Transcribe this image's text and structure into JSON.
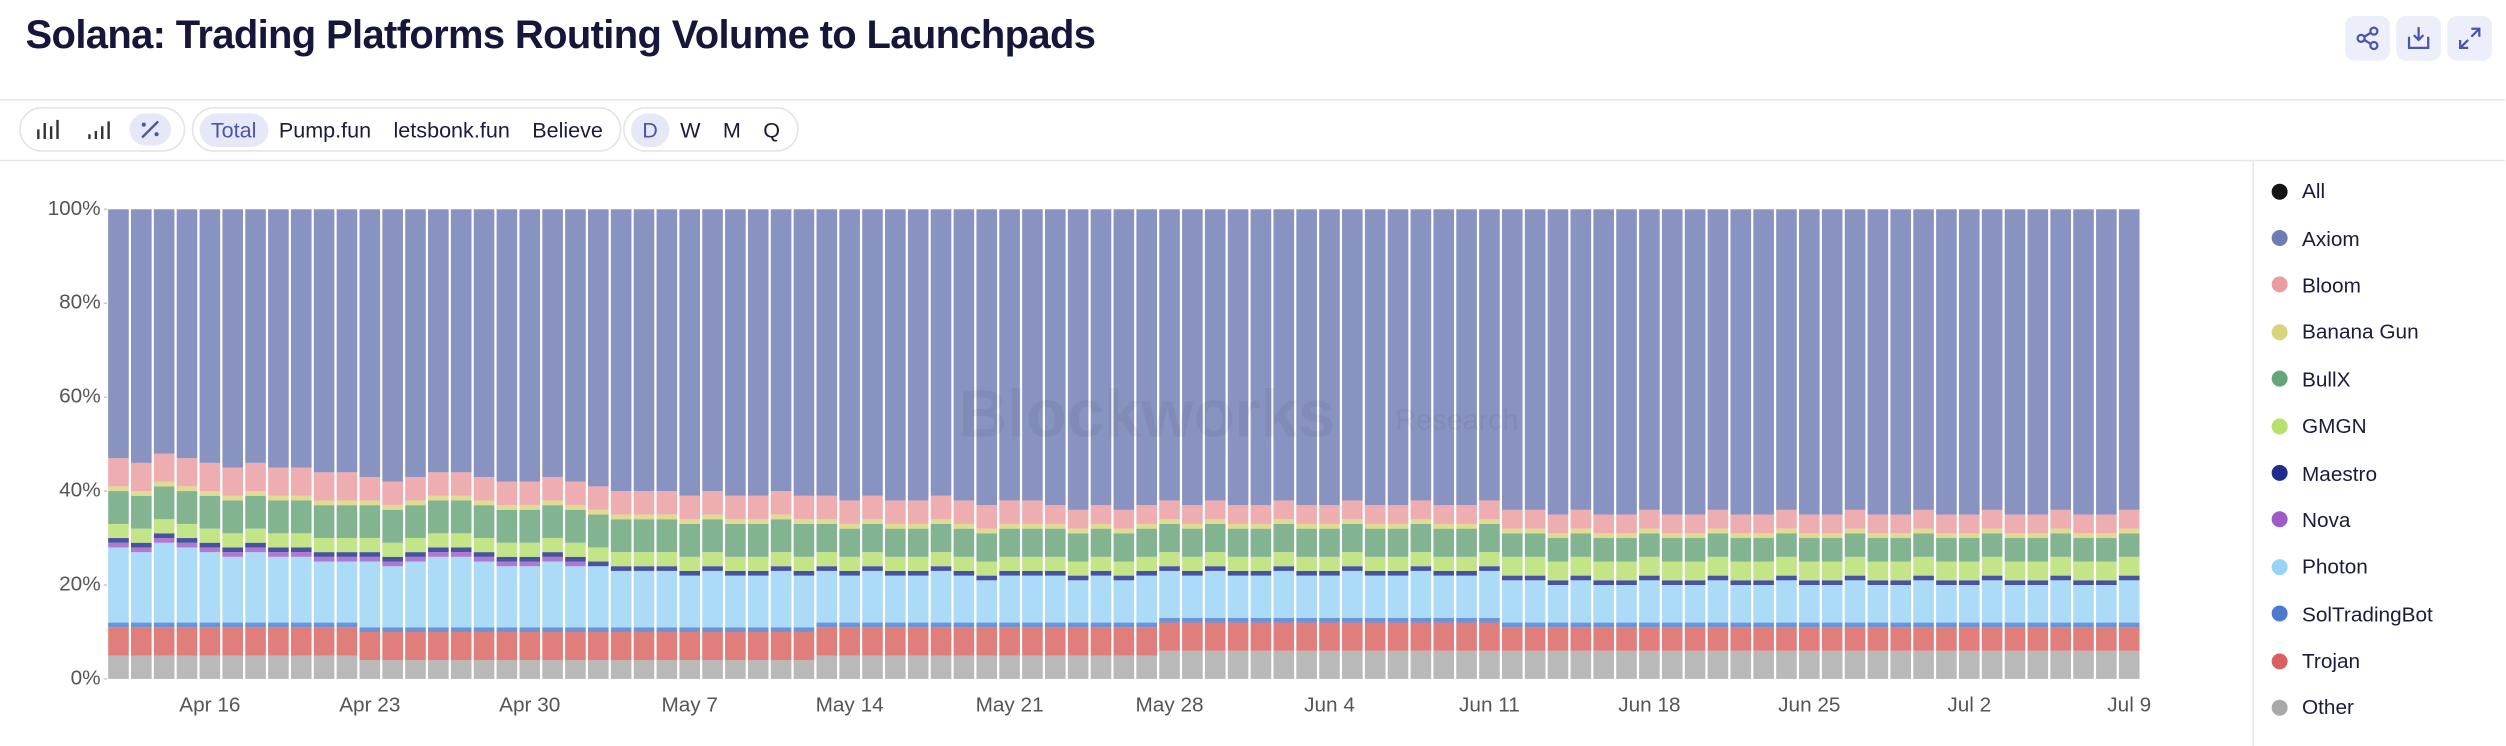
{
  "ui": {
    "toolbar": {
      "breakdowns": [
        "Total",
        "Pump.fun",
        "letsbonk.fun",
        "Believe"
      ],
      "active_breakdown": 0,
      "intervals": [
        "D",
        "W",
        "M",
        "Q"
      ],
      "active_interval": 0
    },
    "watermark": [
      "Blockworks",
      "Research"
    ],
    "legend_all": {
      "name": "All",
      "color": "#151515"
    }
  },
  "chart_data": {
    "type": "stacked_bar",
    "title": "Solana: Trading Platforms Routing Volume to Launchpads",
    "categories": [
      null,
      null,
      null,
      null,
      "Apr 16",
      null,
      null,
      null,
      null,
      null,
      null,
      "Apr 23",
      null,
      null,
      null,
      null,
      null,
      null,
      "Apr 30",
      null,
      null,
      null,
      null,
      null,
      null,
      "May 7",
      null,
      null,
      null,
      null,
      null,
      null,
      "May 14",
      null,
      null,
      null,
      null,
      null,
      null,
      "May 21",
      null,
      null,
      null,
      null,
      null,
      null,
      "May 28",
      null,
      null,
      null,
      null,
      null,
      null,
      "Jun 4",
      null,
      null,
      null,
      null,
      null,
      null,
      "Jun 11",
      null,
      null,
      null,
      null,
      null,
      null,
      "Jun 18",
      null,
      null,
      null,
      null,
      null,
      null,
      "Jun 25",
      null,
      null,
      null,
      null,
      null,
      null,
      "Jul 2",
      null,
      null,
      null,
      null,
      null,
      null,
      "Jul 9"
    ],
    "ylim": [
      0,
      100
    ],
    "yticks": [
      {
        "value": 0,
        "label": "0%"
      },
      {
        "value": 20,
        "label": "20%"
      },
      {
        "value": 40,
        "label": "40%"
      },
      {
        "value": 60,
        "label": "60%"
      },
      {
        "value": 80,
        "label": "80%"
      },
      {
        "value": 100,
        "label": "100%"
      }
    ],
    "series": [
      {
        "name": "Axiom",
        "color": "#6f7bb3",
        "values": [
          53,
          54,
          52,
          53,
          54,
          55,
          54,
          55,
          55,
          56,
          56,
          57,
          58,
          57,
          56,
          56,
          57,
          58,
          58,
          57,
          58,
          59,
          60,
          60,
          60,
          61,
          60,
          61,
          61,
          60,
          61,
          61,
          62,
          61,
          62,
          62,
          61,
          62,
          63,
          62,
          62,
          63,
          64,
          63,
          64,
          63,
          62,
          63,
          62,
          63,
          63,
          62,
          63,
          63,
          62,
          63,
          63,
          62,
          63,
          63,
          62,
          64,
          64,
          65,
          64,
          65,
          65,
          64,
          65,
          65,
          64,
          65,
          65,
          64,
          65,
          65,
          64,
          65,
          65,
          64,
          65,
          65,
          64,
          65,
          65,
          64,
          65,
          65,
          64
        ]
      },
      {
        "name": "Bloom",
        "color": "#ea9ca0",
        "values": [
          6,
          6,
          6,
          6,
          6,
          6,
          6,
          6,
          6,
          6,
          6,
          5,
          5,
          5,
          5,
          5,
          5,
          5,
          5,
          5,
          5,
          5,
          5,
          5,
          5,
          5,
          5,
          5,
          5,
          5,
          5,
          5,
          5,
          5,
          5,
          5,
          5,
          5,
          5,
          5,
          5,
          4,
          4,
          4,
          4,
          4,
          4,
          4,
          4,
          4,
          4,
          4,
          4,
          4,
          4,
          4,
          4,
          4,
          4,
          4,
          4,
          4,
          4,
          4,
          4,
          4,
          4,
          4,
          4,
          4,
          4,
          4,
          4,
          4,
          4,
          4,
          4,
          4,
          4,
          4,
          4,
          4,
          4,
          4,
          4,
          4,
          4,
          4,
          4
        ]
      },
      {
        "name": "Banana Gun",
        "color": "#d8d47a",
        "values": [
          1,
          1,
          1,
          1,
          1,
          1,
          1,
          1,
          1,
          1,
          1,
          1,
          1,
          1,
          1,
          1,
          1,
          1,
          1,
          1,
          1,
          1,
          1,
          1,
          1,
          1,
          1,
          1,
          1,
          1,
          1,
          1,
          1,
          1,
          1,
          1,
          1,
          1,
          1,
          1,
          1,
          1,
          1,
          1,
          1,
          1,
          1,
          1,
          1,
          1,
          1,
          1,
          1,
          1,
          1,
          1,
          1,
          1,
          1,
          1,
          1,
          1,
          1,
          1,
          1,
          1,
          1,
          1,
          1,
          1,
          1,
          1,
          1,
          1,
          1,
          1,
          1,
          1,
          1,
          1,
          1,
          1,
          1,
          1,
          1,
          1,
          1,
          1,
          1
        ]
      },
      {
        "name": "BullX",
        "color": "#66a47a",
        "values": [
          7,
          7,
          7,
          7,
          7,
          7,
          7,
          7,
          7,
          7,
          7,
          7,
          7,
          7,
          7,
          7,
          7,
          7,
          7,
          7,
          7,
          7,
          7,
          7,
          7,
          7,
          7,
          7,
          7,
          7,
          7,
          6,
          6,
          6,
          6,
          6,
          6,
          6,
          6,
          6,
          6,
          6,
          6,
          6,
          6,
          6,
          6,
          6,
          6,
          6,
          6,
          6,
          6,
          6,
          6,
          6,
          6,
          6,
          6,
          6,
          6,
          5,
          5,
          5,
          5,
          5,
          5,
          5,
          5,
          5,
          5,
          5,
          5,
          5,
          5,
          5,
          5,
          5,
          5,
          5,
          5,
          5,
          5,
          5,
          5,
          5,
          5,
          5,
          5
        ]
      },
      {
        "name": "GMGN",
        "color": "#b7df6c",
        "values": [
          3,
          3,
          3,
          3,
          3,
          3,
          3,
          3,
          3,
          3,
          3,
          3,
          3,
          3,
          3,
          3,
          3,
          3,
          3,
          3,
          3,
          3,
          3,
          3,
          3,
          3,
          3,
          3,
          3,
          3,
          3,
          3,
          3,
          3,
          3,
          3,
          3,
          3,
          3,
          3,
          3,
          3,
          3,
          3,
          3,
          3,
          3,
          3,
          3,
          3,
          3,
          3,
          3,
          3,
          3,
          3,
          3,
          3,
          3,
          3,
          3,
          4,
          4,
          4,
          4,
          4,
          4,
          4,
          4,
          4,
          4,
          4,
          4,
          4,
          4,
          4,
          4,
          4,
          4,
          4,
          4,
          4,
          4,
          4,
          4,
          4,
          4,
          4,
          4
        ]
      },
      {
        "name": "Maestro",
        "color": "#1f2d8c",
        "values": [
          1,
          1,
          1,
          1,
          1,
          1,
          1,
          1,
          1,
          1,
          1,
          1,
          1,
          1,
          1,
          1,
          1,
          1,
          1,
          1,
          1,
          1,
          1,
          1,
          1,
          1,
          1,
          1,
          1,
          1,
          1,
          1,
          1,
          1,
          1,
          1,
          1,
          1,
          1,
          1,
          1,
          1,
          1,
          1,
          1,
          1,
          1,
          1,
          1,
          1,
          1,
          1,
          1,
          1,
          1,
          1,
          1,
          1,
          1,
          1,
          1,
          1,
          1,
          1,
          1,
          1,
          1,
          1,
          1,
          1,
          1,
          1,
          1,
          1,
          1,
          1,
          1,
          1,
          1,
          1,
          1,
          1,
          1,
          1,
          1,
          1,
          1,
          1,
          1
        ]
      },
      {
        "name": "Nova",
        "color": "#9d5bc6",
        "values": [
          1,
          1,
          1,
          1,
          1,
          1,
          1,
          1,
          1,
          1,
          1,
          1,
          1,
          1,
          1,
          1,
          1,
          1,
          1,
          1,
          1,
          0,
          0,
          0,
          0,
          0,
          0,
          0,
          0,
          0,
          0,
          0,
          0,
          0,
          0,
          0,
          0,
          0,
          0,
          0,
          0,
          0,
          0,
          0,
          0,
          0,
          0,
          0,
          0,
          0,
          0,
          0,
          0,
          0,
          0,
          0,
          0,
          0,
          0,
          0,
          0,
          0,
          0,
          0,
          0,
          0,
          0,
          0,
          0,
          0,
          0,
          0,
          0,
          0,
          0,
          0,
          0,
          0,
          0,
          0,
          0,
          0,
          0,
          0,
          0,
          0,
          0,
          0,
          0
        ]
      },
      {
        "name": "Photon",
        "color": "#98d3f5",
        "values": [
          16,
          15,
          17,
          16,
          15,
          14,
          15,
          14,
          14,
          13,
          13,
          14,
          13,
          14,
          15,
          15,
          14,
          13,
          13,
          14,
          13,
          13,
          12,
          12,
          12,
          11,
          12,
          11,
          11,
          12,
          11,
          11,
          10,
          11,
          10,
          10,
          11,
          10,
          9,
          10,
          10,
          10,
          9,
          10,
          9,
          10,
          10,
          9,
          10,
          9,
          9,
          10,
          9,
          9,
          10,
          9,
          9,
          10,
          9,
          9,
          10,
          9,
          9,
          8,
          9,
          8,
          8,
          9,
          8,
          8,
          9,
          8,
          8,
          9,
          8,
          8,
          9,
          8,
          8,
          9,
          8,
          8,
          9,
          8,
          8,
          9,
          8,
          8,
          9
        ]
      },
      {
        "name": "SolTradingBot",
        "color": "#4b7bcf",
        "values": [
          1,
          1,
          1,
          1,
          1,
          1,
          1,
          1,
          1,
          1,
          1,
          1,
          1,
          1,
          1,
          1,
          1,
          1,
          1,
          1,
          1,
          1,
          1,
          1,
          1,
          1,
          1,
          1,
          1,
          1,
          1,
          1,
          1,
          1,
          1,
          1,
          1,
          1,
          1,
          1,
          1,
          1,
          1,
          1,
          1,
          1,
          1,
          1,
          1,
          1,
          1,
          1,
          1,
          1,
          1,
          1,
          1,
          1,
          1,
          1,
          1,
          1,
          1,
          1,
          1,
          1,
          1,
          1,
          1,
          1,
          1,
          1,
          1,
          1,
          1,
          1,
          1,
          1,
          1,
          1,
          1,
          1,
          1,
          1,
          1,
          1,
          1,
          1,
          1
        ]
      },
      {
        "name": "Trojan",
        "color": "#d9625e",
        "values": [
          6,
          6,
          6,
          6,
          6,
          6,
          6,
          6,
          6,
          6,
          6,
          6,
          6,
          6,
          6,
          6,
          6,
          6,
          6,
          6,
          6,
          6,
          6,
          6,
          6,
          6,
          6,
          6,
          6,
          6,
          6,
          6,
          6,
          6,
          6,
          6,
          6,
          6,
          6,
          6,
          6,
          6,
          6,
          6,
          6,
          6,
          6,
          6,
          6,
          6,
          6,
          6,
          6,
          6,
          6,
          6,
          6,
          6,
          6,
          6,
          6,
          5,
          5,
          5,
          5,
          5,
          5,
          5,
          5,
          5,
          5,
          5,
          5,
          5,
          5,
          5,
          5,
          5,
          5,
          5,
          5,
          5,
          5,
          5,
          5,
          5,
          5,
          5,
          5
        ]
      },
      {
        "name": "Other",
        "color": "#a9a9a9",
        "values": [
          5,
          5,
          5,
          5,
          5,
          5,
          5,
          5,
          5,
          5,
          5,
          4,
          4,
          4,
          4,
          4,
          4,
          4,
          4,
          4,
          4,
          4,
          4,
          4,
          4,
          4,
          4,
          4,
          4,
          4,
          4,
          5,
          5,
          5,
          5,
          5,
          5,
          5,
          5,
          5,
          5,
          5,
          5,
          5,
          5,
          5,
          6,
          6,
          6,
          6,
          6,
          6,
          6,
          6,
          6,
          6,
          6,
          6,
          6,
          6,
          6,
          6,
          6,
          6,
          6,
          6,
          6,
          6,
          6,
          6,
          6,
          6,
          6,
          6,
          6,
          6,
          6,
          6,
          6,
          6,
          6,
          6,
          6,
          6,
          6,
          6,
          6,
          6,
          6
        ]
      }
    ]
  }
}
